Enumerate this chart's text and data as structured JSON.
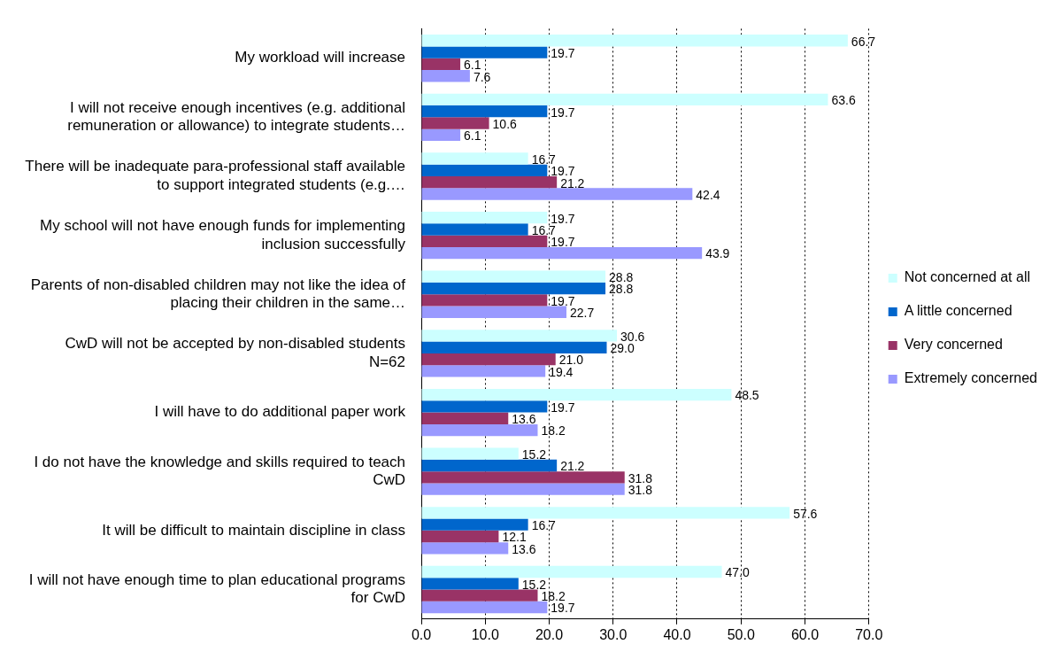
{
  "chart_data": {
    "type": "bar",
    "orientation": "horizontal",
    "categories": [
      "My workload will increase",
      "I will not receive enough incentives (e.g. additional remuneration or allowance) to integrate students…",
      "There will be inadequate para-professional staff available to support integrated students (e.g.…",
      "My school will not have enough funds for implementing inclusion successfully",
      "Parents of non-disabled children may not like the idea of placing their children in the same…",
      "CwD will not be accepted by non-disabled students N=62",
      "I will have to do additional paper work",
      "I do not have the knowledge and skills required to teach CwD",
      "It will be difficult to maintain discipline in class",
      "I will not have enough time to plan educational programs for CwD"
    ],
    "series": [
      {
        "name": "Not concerned at all",
        "color": "#ccffff",
        "values": [
          66.7,
          63.6,
          16.7,
          19.7,
          28.8,
          30.6,
          48.5,
          15.2,
          57.6,
          47.0
        ],
        "value_labels": [
          "66.7",
          "63.6",
          "16.7",
          "19.7",
          "28.8",
          "30.6",
          "48.5",
          "15.2",
          "57.6",
          "47.0"
        ]
      },
      {
        "name": "A little concerned",
        "color": "#0066cc",
        "values": [
          19.7,
          19.7,
          19.7,
          16.7,
          28.8,
          29.0,
          19.7,
          21.2,
          16.7,
          15.2
        ],
        "value_labels": [
          "19.7",
          "19.7",
          "19.7",
          "16.7",
          "28.8",
          "29.0",
          "19.7",
          "21.2",
          "16.7",
          "15.2"
        ]
      },
      {
        "name": "Very concerned",
        "color": "#993366",
        "values": [
          6.1,
          10.6,
          21.2,
          19.7,
          19.7,
          21.0,
          13.6,
          31.8,
          12.1,
          18.2
        ],
        "value_labels": [
          "6.1",
          "10.6",
          "21.2",
          "19.7",
          "19.7",
          "21.0",
          "13.6",
          "31.8",
          "12.1",
          "18.2"
        ]
      },
      {
        "name": "Extremely concerned",
        "color": "#9999ff",
        "values": [
          7.6,
          6.1,
          42.4,
          43.9,
          22.7,
          19.4,
          18.2,
          31.8,
          13.6,
          19.7
        ],
        "value_labels": [
          "7.6",
          "6.1",
          "42.4",
          "43.9",
          "22.7",
          "19.4",
          "18.2",
          "31.8",
          "13.6",
          "19.7"
        ]
      }
    ],
    "xlim": [
      0,
      70
    ],
    "xticks": [
      {
        "value": 0,
        "label": "0.0"
      },
      {
        "value": 10,
        "label": "10.0"
      },
      {
        "value": 20,
        "label": "20.0"
      },
      {
        "value": 30,
        "label": "30.0"
      },
      {
        "value": 40,
        "label": "40.0"
      },
      {
        "value": 50,
        "label": "50.0"
      },
      {
        "value": 60,
        "label": "60.0"
      },
      {
        "value": 70,
        "label": "70.0"
      }
    ],
    "grid": "x",
    "legend": "right"
  }
}
